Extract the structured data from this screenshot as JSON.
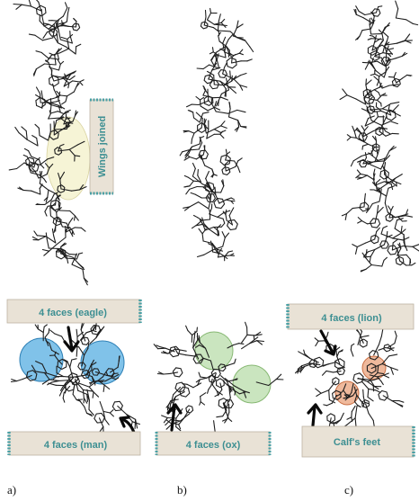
{
  "labels": {
    "wings": "Wings joined",
    "eagle": "4 faces (eagle)",
    "man": "4 faces (man)",
    "ox": "4 faces (ox)",
    "lion": "4 faces (lion)",
    "calf": "Calf's feet"
  },
  "panels": [
    "a)",
    "b)",
    "c)"
  ],
  "colors": {
    "tag_fill": "#e9e2d6",
    "tag_text": "#3d8f92",
    "blue_highlight": "#4aa8e0",
    "green_highlight": "#9fcf8a",
    "orange_highlight": "#e58a5a",
    "yellow_highlight": "#f3f0c8",
    "structure": "#1e1e1e"
  }
}
